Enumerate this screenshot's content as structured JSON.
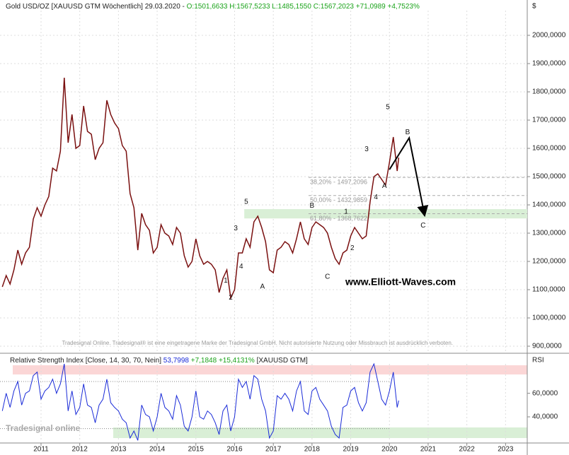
{
  "chart_data": {
    "type": "line",
    "title": "Gold USD/OZ [XAUUSD GTM  Wöchentlich] 29.03.2020 -",
    "quote": "O:1501,6633 H:1567,5233 L:1485,1550 C:1567,2023 +71,0989 +4,7523%",
    "y_axis_label": "$",
    "x": [
      2010.0,
      2010.1,
      2010.2,
      2010.3,
      2010.4,
      2010.5,
      2010.6,
      2010.7,
      2010.8,
      2010.9,
      2011.0,
      2011.1,
      2011.2,
      2011.3,
      2011.4,
      2011.5,
      2011.6,
      2011.7,
      2011.8,
      2011.9,
      2012.0,
      2012.1,
      2012.2,
      2012.3,
      2012.4,
      2012.5,
      2012.6,
      2012.7,
      2012.8,
      2012.9,
      2013.0,
      2013.1,
      2013.2,
      2013.3,
      2013.4,
      2013.5,
      2013.6,
      2013.7,
      2013.8,
      2013.9,
      2014.0,
      2014.1,
      2014.2,
      2014.3,
      2014.4,
      2014.5,
      2014.6,
      2014.7,
      2014.8,
      2014.9,
      2015.0,
      2015.1,
      2015.2,
      2015.3,
      2015.4,
      2015.5,
      2015.6,
      2015.7,
      2015.8,
      2015.9,
      2016.0,
      2016.1,
      2016.2,
      2016.3,
      2016.4,
      2016.5,
      2016.6,
      2016.7,
      2016.8,
      2016.9,
      2017.0,
      2017.1,
      2017.2,
      2017.3,
      2017.4,
      2017.5,
      2017.6,
      2017.7,
      2017.8,
      2017.9,
      2018.0,
      2018.1,
      2018.2,
      2018.3,
      2018.4,
      2018.5,
      2018.6,
      2018.7,
      2018.8,
      2018.9,
      2019.0,
      2019.1,
      2019.2,
      2019.3,
      2019.4,
      2019.5,
      2019.6,
      2019.7,
      2019.8,
      2019.9,
      2020.0,
      2020.1,
      2020.2,
      2020.24
    ],
    "series": [
      {
        "name": "Gold USD/OZ",
        "color": "#7a1010",
        "values": [
          1110,
          1150,
          1120,
          1170,
          1240,
          1190,
          1230,
          1250,
          1350,
          1390,
          1360,
          1400,
          1430,
          1530,
          1520,
          1590,
          1850,
          1620,
          1720,
          1600,
          1610,
          1750,
          1660,
          1650,
          1560,
          1600,
          1620,
          1770,
          1720,
          1690,
          1670,
          1610,
          1590,
          1440,
          1390,
          1240,
          1370,
          1330,
          1310,
          1230,
          1250,
          1330,
          1300,
          1290,
          1260,
          1320,
          1300,
          1220,
          1180,
          1200,
          1280,
          1220,
          1190,
          1200,
          1190,
          1170,
          1090,
          1140,
          1170,
          1070,
          1100,
          1230,
          1230,
          1280,
          1250,
          1340,
          1360,
          1320,
          1270,
          1170,
          1160,
          1240,
          1250,
          1270,
          1260,
          1230,
          1280,
          1340,
          1280,
          1260,
          1320,
          1340,
          1330,
          1320,
          1300,
          1250,
          1210,
          1190,
          1230,
          1240,
          1290,
          1320,
          1300,
          1280,
          1290,
          1410,
          1500,
          1510,
          1490,
          1470,
          1550,
          1640,
          1520,
          1567.2023
        ]
      }
    ],
    "xlim": [
      2009.94,
      2023.56
    ],
    "xticks": [
      2011,
      2012,
      2013,
      2014,
      2015,
      2016,
      2017,
      2018,
      2019,
      2020,
      2021,
      2022,
      2023
    ],
    "ylim": [
      882.5,
      2125
    ],
    "yticks": [
      {
        "value": 900,
        "label": "900,0000"
      },
      {
        "value": 1000,
        "label": "1000,0000"
      },
      {
        "value": 1100,
        "label": "1100,0000"
      },
      {
        "value": 1200,
        "label": "1200,0000"
      },
      {
        "value": 1300,
        "label": "1300,0000"
      },
      {
        "value": 1400,
        "label": "1400,0000"
      },
      {
        "value": 1500,
        "label": "1500,0000"
      },
      {
        "value": 1600,
        "label": "1600,0000"
      },
      {
        "value": 1700,
        "label": "1700,0000"
      },
      {
        "value": 1800,
        "label": "1800,0000"
      },
      {
        "value": 1900,
        "label": "1900,0000"
      },
      {
        "value": 2000,
        "label": "2000,0000"
      }
    ],
    "grid": true,
    "fib_levels": {
      "start": 2017.91,
      "levels": [
        {
          "value": 1497.2096,
          "label": "38,20% - 1497,2096"
        },
        {
          "value": 1432.9859,
          "label": "50,00% - 1432,9859"
        },
        {
          "value": 1368.7622,
          "label": "61,80% - 1368,7622"
        }
      ]
    },
    "support_zone": {
      "start": 2016.25,
      "from": 1352,
      "to": 1385
    },
    "projection": {
      "x": [
        2020.0,
        2020.51,
        2020.91
      ],
      "y": [
        1525,
        1637,
        1362
      ]
    },
    "annotations": [
      {
        "text": "5",
        "x": 2019.96,
        "y": 1745
      },
      {
        "text": "B",
        "x": 2020.47,
        "y": 1657
      },
      {
        "text": "3",
        "x": 2019.41,
        "y": 1597
      },
      {
        "text": "4",
        "x": 2019.65,
        "y": 1427
      },
      {
        "text": "A",
        "x": 2019.87,
        "y": 1467
      },
      {
        "text": "C",
        "x": 2020.87,
        "y": 1327
      },
      {
        "text": "5",
        "x": 2016.3,
        "y": 1410
      },
      {
        "text": "3",
        "x": 2016.03,
        "y": 1317
      },
      {
        "text": "4",
        "x": 2016.17,
        "y": 1182
      },
      {
        "text": "A",
        "x": 2016.72,
        "y": 1110
      },
      {
        "text": "1",
        "x": 2015.77,
        "y": 1132
      },
      {
        "text": "2",
        "x": 2015.9,
        "y": 1072
      },
      {
        "text": "B",
        "x": 2018.0,
        "y": 1397
      },
      {
        "text": "1",
        "x": 2018.88,
        "y": 1375
      },
      {
        "text": "2",
        "x": 2019.04,
        "y": 1247
      },
      {
        "text": "C",
        "x": 2018.4,
        "y": 1145
      }
    ],
    "website": "www.Elliott-Waves.com",
    "disclaimer": "Tradesignal Online. Tradesignal® ist eine eingetragene Marke der Tradesignal GmbH. Nicht autorisierte Nutzung oder Missbrauch ist ausdrücklich verboten.",
    "logo": "Tradesignal online",
    "rsi": {
      "title": "Relative Strength Index [Close, 14, 30, 70, Nein]",
      "last": "53,7998",
      "change": "+7,1848 +15,4131%",
      "symbol": "[XAUUSD GTM]",
      "axis_label": "RSI",
      "color": "#1a2bd8",
      "values": [
        45,
        60,
        48,
        62,
        70,
        50,
        60,
        62,
        75,
        78,
        55,
        62,
        65,
        72,
        60,
        68,
        85,
        45,
        62,
        42,
        48,
        68,
        50,
        48,
        35,
        50,
        55,
        72,
        52,
        48,
        45,
        38,
        35,
        22,
        28,
        20,
        50,
        42,
        40,
        28,
        40,
        60,
        48,
        45,
        38,
        58,
        50,
        32,
        28,
        40,
        62,
        40,
        38,
        45,
        42,
        35,
        25,
        45,
        50,
        28,
        40,
        72,
        65,
        70,
        55,
        75,
        72,
        55,
        45,
        22,
        28,
        58,
        55,
        60,
        55,
        45,
        62,
        70,
        45,
        42,
        62,
        65,
        55,
        50,
        45,
        32,
        25,
        22,
        48,
        50,
        62,
        65,
        52,
        45,
        52,
        78,
        85,
        70,
        55,
        50,
        62,
        78,
        48,
        53.7998
      ],
      "ylim": [
        19,
        91
      ],
      "yticks": [
        {
          "value": 40,
          "label": "40,0000"
        },
        {
          "value": 60,
          "label": "60,0000"
        }
      ],
      "levels": [
        30,
        70
      ]
    }
  }
}
